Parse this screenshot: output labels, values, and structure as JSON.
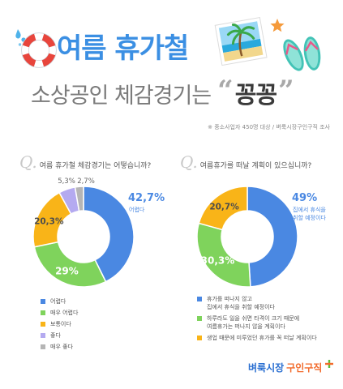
{
  "header": {
    "title": "여름 휴가철",
    "subtitle": "소상공인 체감경기는",
    "quote_open": "“",
    "emphasis": "꽁꽁",
    "quote_close": "”",
    "note": "※ 중소사업자 450명 대상 / 벼룩시장구인구직 조사"
  },
  "colors": {
    "title": "#3b8fe3",
    "subtitle": "#7b7b7b",
    "emphasis": "#3a3a3a",
    "brand": "#2a6fd1",
    "service": "#f26b2c"
  },
  "icons": {
    "splash": "water-splash-icon",
    "lifebuoy": "lifebuoy-icon",
    "photo": "beach-photo-icon",
    "starfish": "starfish-icon",
    "sandals": "flip-flops-icon",
    "logo_mark": "plus-icon"
  },
  "chart_data": [
    {
      "type": "pie",
      "hole": true,
      "q_label": "Q.",
      "title": "여름 휴가철 체감경기는 어떻습니까?",
      "categories": [
        "어렵다",
        "매우 어렵다",
        "보통이다",
        "좋다",
        "매우 좋다"
      ],
      "values": [
        42.7,
        29,
        20.3,
        5.3,
        2.7
      ],
      "value_labels": [
        "42,7%",
        "29%",
        "20,3%",
        "5,3%",
        "2,7%"
      ],
      "callout": [
        "어렵다"
      ],
      "colors": [
        "#4a88e2",
        "#7fd35c",
        "#f9b418",
        "#b4aaf0",
        "#b5b5b5"
      ],
      "legend_position": "bottom"
    },
    {
      "type": "pie",
      "hole": true,
      "q_label": "Q.",
      "title": "여름휴가를 떠날 계획이 있으십니까?",
      "categories": [
        [
          "휴가를 떠나지 않고",
          "집에서 휴식을 취할 예정이다"
        ],
        [
          "하루라도 일을 쉬면 타격이 크기 때문에",
          "여름휴가는 떠나지 않을 계획이다"
        ],
        [
          "생업 때문에 미루었던 휴가를 꼭 떠날 계획이다"
        ]
      ],
      "values": [
        49,
        30.3,
        20.7
      ],
      "value_labels": [
        "49%",
        "30,3%",
        "20,7%"
      ],
      "callout": [
        "집에서 휴식을",
        "취할 예정이다"
      ],
      "colors": [
        "#4a88e2",
        "#7fd35c",
        "#f9b418"
      ],
      "legend_position": "bottom"
    }
  ],
  "logo": {
    "brand": "벼룩시장",
    "service": "구인구직"
  }
}
